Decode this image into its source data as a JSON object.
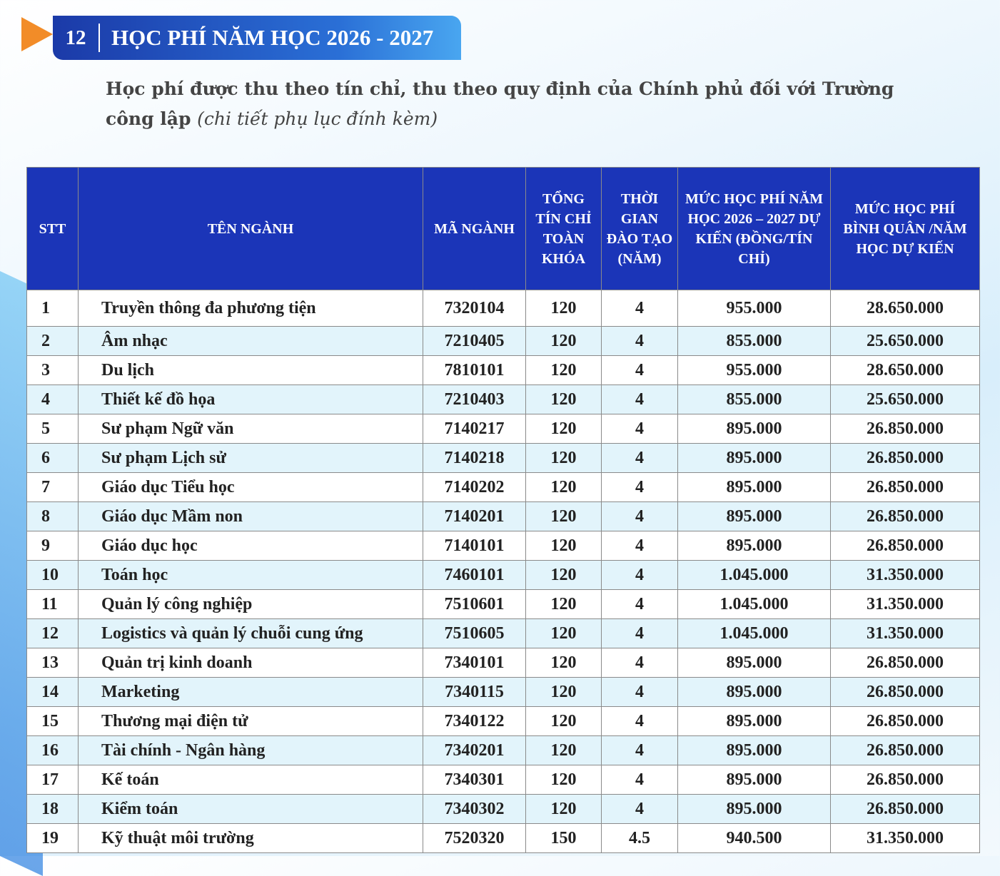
{
  "header": {
    "number": "12",
    "title": "HỌC PHÍ NĂM HỌC 2026 - 2027"
  },
  "subtitle": {
    "text": "Học phí được thu theo tín chỉ, thu theo quy định của Chính phủ đối với Trường công lập",
    "note": "(chi tiết phụ lục đính kèm)"
  },
  "table": {
    "columns": [
      "STT",
      "TÊN NGÀNH",
      "MÃ NGÀNH",
      "TỔNG TÍN CHỈ TOÀN KHÓA",
      "THỜI GIAN ĐÀO TẠO (NĂM)",
      "MỨC HỌC PHÍ NĂM HỌC 2026 – 2027 DỰ KIẾN (ĐỒNG/TÍN CHỈ)",
      "MỨC HỌC PHÍ BÌNH QUÂN /NĂM HỌC DỰ KIẾN"
    ],
    "rows": [
      [
        "1",
        "Truyền thông đa phương tiện",
        "7320104",
        "120",
        "4",
        "955.000",
        "28.650.000"
      ],
      [
        "2",
        "Âm nhạc",
        "7210405",
        "120",
        "4",
        "855.000",
        "25.650.000"
      ],
      [
        "3",
        "Du lịch",
        "7810101",
        "120",
        "4",
        "955.000",
        "28.650.000"
      ],
      [
        "4",
        "Thiết kế đồ họa",
        "7210403",
        "120",
        "4",
        "855.000",
        "25.650.000"
      ],
      [
        "5",
        "Sư phạm Ngữ văn",
        "7140217",
        "120",
        "4",
        "895.000",
        "26.850.000"
      ],
      [
        "6",
        "Sư phạm Lịch sử",
        "7140218",
        "120",
        "4",
        "895.000",
        "26.850.000"
      ],
      [
        "7",
        "Giáo dục Tiểu học",
        "7140202",
        "120",
        "4",
        "895.000",
        "26.850.000"
      ],
      [
        "8",
        "Giáo dục Mầm non",
        "7140201",
        "120",
        "4",
        "895.000",
        "26.850.000"
      ],
      [
        "9",
        "Giáo dục học",
        "7140101",
        "120",
        "4",
        "895.000",
        "26.850.000"
      ],
      [
        "10",
        "Toán học",
        "7460101",
        "120",
        "4",
        "1.045.000",
        "31.350.000"
      ],
      [
        "11",
        "Quản lý công nghiệp",
        "7510601",
        "120",
        "4",
        "1.045.000",
        "31.350.000"
      ],
      [
        "12",
        "Logistics và quản lý chuỗi cung ứng",
        "7510605",
        "120",
        "4",
        "1.045.000",
        "31.350.000"
      ],
      [
        "13",
        "Quản trị kinh doanh",
        "7340101",
        "120",
        "4",
        "895.000",
        "26.850.000"
      ],
      [
        "14",
        "Marketing",
        "7340115",
        "120",
        "4",
        "895.000",
        "26.850.000"
      ],
      [
        "15",
        "Thương mại điện tử",
        "7340122",
        "120",
        "4",
        "895.000",
        "26.850.000"
      ],
      [
        "16",
        "Tài chính - Ngân hàng",
        "7340201",
        "120",
        "4",
        "895.000",
        "26.850.000"
      ],
      [
        "17",
        "Kế toán",
        "7340301",
        "120",
        "4",
        "895.000",
        "26.850.000"
      ],
      [
        "18",
        "Kiểm toán",
        "7340302",
        "120",
        "4",
        "895.000",
        "26.850.000"
      ],
      [
        "19",
        "Kỹ thuật môi trường",
        "7520320",
        "150",
        "4.5",
        "940.500",
        "31.350.000"
      ]
    ]
  }
}
